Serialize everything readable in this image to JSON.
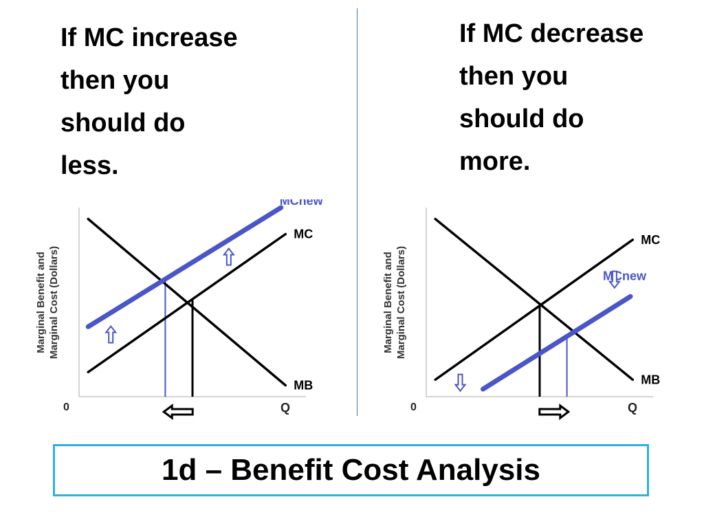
{
  "left_caption": [
    "If MC increase",
    "then you",
    "should do",
    "less."
  ],
  "right_caption": [
    "If MC decrease",
    "then you",
    "should do",
    "more."
  ],
  "footer": {
    "title": "1d – Benefit Cost Analysis"
  },
  "colors": {
    "curve": "#000000",
    "new_curve": "#4a55c8",
    "border": "#2bb0e0",
    "divider": "#4a6fb5"
  },
  "chart_data": [
    {
      "type": "line",
      "title": "",
      "ylabel_lines": [
        "Marginal Benefit and",
        "Marginal Cost (Dollars)"
      ],
      "xlabel": "Q",
      "origin_label": "0",
      "xlim": [
        0,
        10
      ],
      "ylim": [
        0,
        10
      ],
      "series": [
        {
          "name": "MB",
          "x": [
            0.4,
            9.1
          ],
          "y": [
            9.4,
            0.6
          ],
          "color": "#000000"
        },
        {
          "name": "MC",
          "x": [
            0.4,
            9.1
          ],
          "y": [
            1.3,
            8.6
          ],
          "color": "#000000"
        },
        {
          "name": "MCnew",
          "x": [
            0.4,
            8.9
          ],
          "y": [
            3.7,
            10.0
          ],
          "color": "#4a55c8"
        }
      ],
      "equilibria": [
        {
          "q": 5.0,
          "series": "MC",
          "color": "#000000"
        },
        {
          "q": 3.8,
          "series": "MCnew",
          "color": "#4a55c8"
        }
      ],
      "shift_arrows": [
        "up",
        "up"
      ],
      "quantity_arrow": "left"
    },
    {
      "type": "line",
      "title": "",
      "ylabel_lines": [
        "Marginal Benefit and",
        "Marginal Cost (Dollars)"
      ],
      "xlabel": "Q",
      "origin_label": "0",
      "xlim": [
        0,
        10
      ],
      "ylim": [
        0,
        10
      ],
      "series": [
        {
          "name": "MB",
          "x": [
            0.4,
            9.1
          ],
          "y": [
            9.4,
            0.9
          ],
          "color": "#000000"
        },
        {
          "name": "MC",
          "x": [
            0.4,
            9.1
          ],
          "y": [
            0.9,
            8.3
          ],
          "color": "#000000"
        },
        {
          "name": "MCnew",
          "x": [
            2.5,
            9.0
          ],
          "y": [
            0.4,
            5.3
          ],
          "color": "#4a55c8"
        }
      ],
      "equilibria": [
        {
          "q": 5.0,
          "series": "MC",
          "color": "#000000"
        },
        {
          "q": 6.2,
          "series": "MCnew",
          "color": "#4a55c8"
        }
      ],
      "shift_arrows": [
        "down",
        "down"
      ],
      "quantity_arrow": "right"
    }
  ]
}
